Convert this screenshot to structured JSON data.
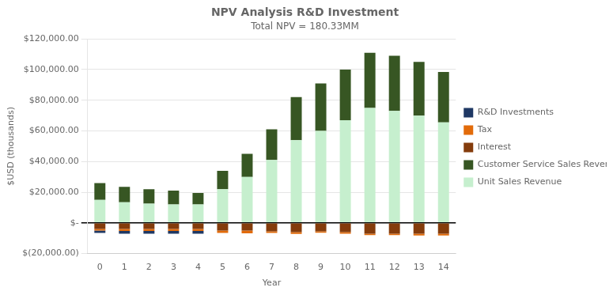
{
  "chart_data": {
    "type": "bar",
    "title": "NPV Analysis R&D Investment",
    "subtitle": "Total NPV = 180.33MM",
    "x_label": "Year",
    "y_label": "$USD (thousands)",
    "categories": [
      "0",
      "1",
      "2",
      "3",
      "4",
      "5",
      "6",
      "7",
      "8",
      "9",
      "10",
      "11",
      "12",
      "13",
      "14"
    ],
    "series": [
      {
        "name": "Unit Sales Revenue",
        "color": "#c6efce",
        "values": [
          15000,
          13500,
          12500,
          12000,
          12000,
          22000,
          30000,
          41000,
          54000,
          60000,
          67000,
          75000,
          73000,
          70000,
          65500
        ]
      },
      {
        "name": "Customer Service Sales Revenue",
        "color": "#375623",
        "values": [
          11000,
          10000,
          9500,
          9000,
          7500,
          12000,
          15000,
          20000,
          28000,
          31000,
          33000,
          36000,
          36000,
          35000,
          33000
        ]
      },
      {
        "name": "Interest",
        "color": "#843c0c",
        "values": [
          -4000,
          -4000,
          -4000,
          -4000,
          -4000,
          -5000,
          -5000,
          -5500,
          -6000,
          -5500,
          -6000,
          -7000,
          -7000,
          -7000,
          -7000
        ]
      },
      {
        "name": "Tax",
        "color": "#e26b0a",
        "values": [
          -1000,
          -1200,
          -1200,
          -1200,
          -1200,
          -1500,
          -1800,
          -1000,
          -1200,
          -900,
          -1000,
          -1000,
          -1000,
          -1200,
          -1200
        ]
      },
      {
        "name": "R&D Investments",
        "color": "#1f3864",
        "values": [
          -1500,
          -1800,
          -1800,
          -1800,
          -1800,
          0,
          0,
          0,
          0,
          0,
          0,
          0,
          0,
          0,
          0
        ]
      }
    ],
    "stacked": true,
    "ylim": [
      -20000,
      120000
    ],
    "yticks": [
      {
        "value": -20000,
        "label": "$(20,000.00)"
      },
      {
        "value": 0,
        "label": "$-"
      },
      {
        "value": 20000,
        "label": "$20,000.00"
      },
      {
        "value": 40000,
        "label": "$40,000.00"
      },
      {
        "value": 60000,
        "label": "$60,000.00"
      },
      {
        "value": 80000,
        "label": "$80,000.00"
      },
      {
        "value": 100000,
        "label": "$100,000.00"
      },
      {
        "value": 120000,
        "label": "$120,000.00"
      }
    ],
    "grid": true,
    "legend": "right"
  }
}
